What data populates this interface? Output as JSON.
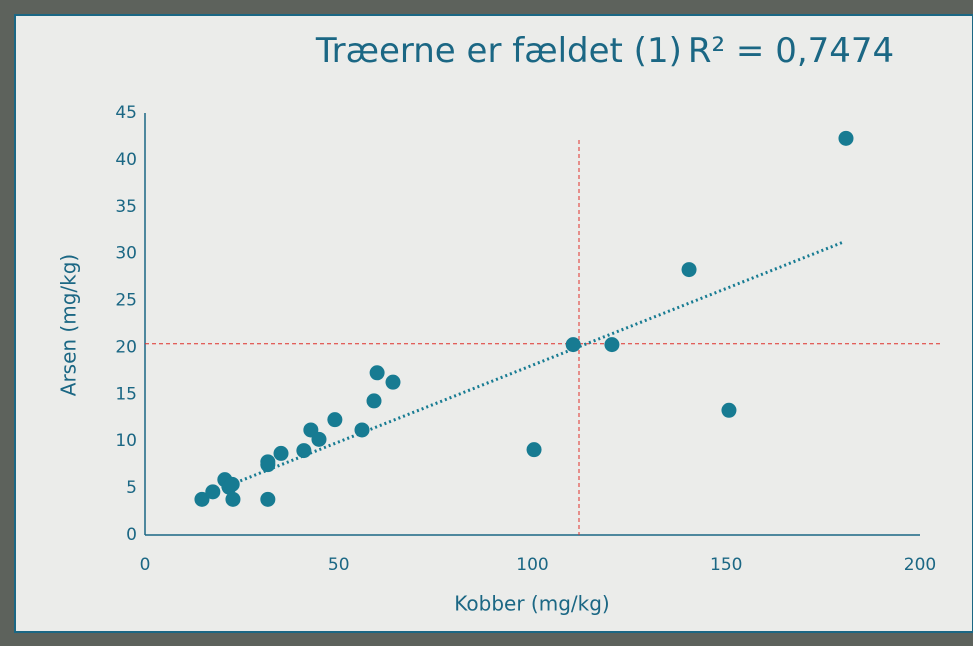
{
  "chart_data": {
    "type": "scatter",
    "title": "Træerne er fældet (1)",
    "annotation": "R² = 0,7474",
    "xlabel": "Kobber (mg/kg)",
    "ylabel": "Arsen (mg/kg)",
    "xlim": [
      0,
      200
    ],
    "xticks": [
      0,
      50,
      100,
      150,
      200
    ],
    "ylim": [
      0,
      45
    ],
    "yticks": [
      0,
      5,
      10,
      15,
      20,
      25,
      30,
      35,
      40,
      45
    ],
    "color": "#177b92",
    "x": [
      14.7,
      17.5,
      20.6,
      21.7,
      22.5,
      22.7,
      31.7,
      31.7,
      31.7,
      35.1,
      41,
      42.8,
      44.9,
      49,
      56,
      59.1,
      59.9,
      64,
      100.4,
      110.5,
      120.5,
      140.4,
      150.7,
      180.9
    ],
    "values": [
      3.8,
      4.6,
      5.9,
      5.1,
      5.4,
      3.8,
      3.8,
      7.5,
      7.8,
      8.7,
      9,
      11.2,
      10.2,
      12.3,
      11.2,
      14.3,
      17.3,
      16.3,
      9.1,
      20.3,
      20.3,
      28.3,
      13.3,
      42.3
    ],
    "trendline": {
      "x": [
        15,
        180
      ],
      "y": [
        4.2,
        31.2
      ],
      "color": "#177b92"
    },
    "reference_lines": {
      "x": 112,
      "y": 20.4,
      "color": "#e0302a"
    }
  }
}
